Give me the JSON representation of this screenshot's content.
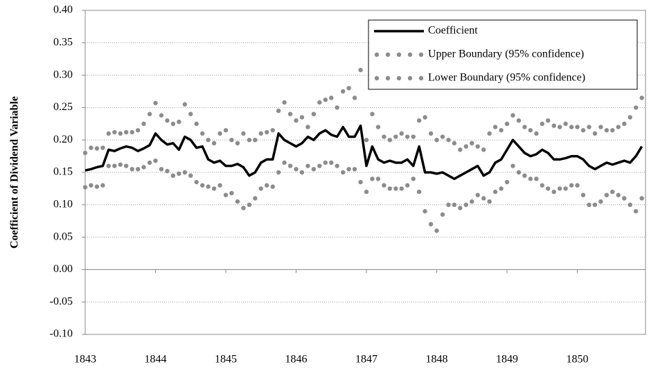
{
  "chart_data": {
    "type": "line",
    "y_label": "Coefficient of Dividend Variable",
    "xlim": [
      1843,
      1850.97
    ],
    "xticks": [
      1843,
      1844,
      1845,
      1846,
      1847,
      1848,
      1849,
      1850
    ],
    "ylim": [
      -0.1,
      0.4
    ],
    "yticks": [
      {
        "value": -0.1,
        "label": "-0.10"
      },
      {
        "value": -0.05,
        "label": "-0.05"
      },
      {
        "value": 0,
        "label": "0.00"
      },
      {
        "value": 0.05,
        "label": "0.05"
      },
      {
        "value": 0.1,
        "label": "0.10"
      },
      {
        "value": 0.15,
        "label": "0.15"
      },
      {
        "value": 0.2,
        "label": "0.20"
      },
      {
        "value": 0.25,
        "label": "0.25"
      },
      {
        "value": 0.3,
        "label": "0.30"
      },
      {
        "value": 0.35,
        "label": "0.35"
      },
      {
        "value": 0.4,
        "label": "0.40"
      }
    ],
    "grid": true,
    "legend": "top-right",
    "x": [
      1843.0,
      1843.083,
      1843.167,
      1843.25,
      1843.333,
      1843.417,
      1843.5,
      1843.583,
      1843.667,
      1843.75,
      1843.833,
      1843.917,
      1844.0,
      1844.083,
      1844.167,
      1844.25,
      1844.333,
      1844.417,
      1844.5,
      1844.583,
      1844.667,
      1844.75,
      1844.833,
      1844.917,
      1845.0,
      1845.083,
      1845.167,
      1845.25,
      1845.333,
      1845.417,
      1845.5,
      1845.583,
      1845.667,
      1845.75,
      1845.833,
      1845.917,
      1846.0,
      1846.083,
      1846.167,
      1846.25,
      1846.333,
      1846.417,
      1846.5,
      1846.583,
      1846.667,
      1846.75,
      1846.833,
      1846.917,
      1847.0,
      1847.083,
      1847.167,
      1847.25,
      1847.333,
      1847.417,
      1847.5,
      1847.583,
      1847.667,
      1847.75,
      1847.833,
      1847.917,
      1848.0,
      1848.083,
      1848.167,
      1848.25,
      1848.333,
      1848.417,
      1848.5,
      1848.583,
      1848.667,
      1848.75,
      1848.833,
      1848.917,
      1849.0,
      1849.083,
      1849.167,
      1849.25,
      1849.333,
      1849.417,
      1849.5,
      1849.583,
      1849.667,
      1849.75,
      1849.833,
      1849.917,
      1850.0,
      1850.083,
      1850.167,
      1850.25,
      1850.333,
      1850.417,
      1850.5,
      1850.583,
      1850.667,
      1850.75,
      1850.833,
      1850.917
    ],
    "series": [
      {
        "name": "Coefficient",
        "color": "#000000",
        "style": "line",
        "values": [
          0.153,
          0.155,
          0.158,
          0.16,
          0.185,
          0.183,
          0.187,
          0.19,
          0.188,
          0.183,
          0.187,
          0.192,
          0.21,
          0.2,
          0.193,
          0.195,
          0.185,
          0.205,
          0.2,
          0.188,
          0.19,
          0.17,
          0.165,
          0.168,
          0.16,
          0.16,
          0.163,
          0.158,
          0.145,
          0.15,
          0.165,
          0.17,
          0.17,
          0.21,
          0.2,
          0.195,
          0.19,
          0.195,
          0.205,
          0.2,
          0.21,
          0.215,
          0.208,
          0.205,
          0.22,
          0.205,
          0.205,
          0.222,
          0.16,
          0.19,
          0.17,
          0.165,
          0.168,
          0.165,
          0.165,
          0.17,
          0.16,
          0.19,
          0.15,
          0.15,
          0.148,
          0.15,
          0.145,
          0.14,
          0.145,
          0.15,
          0.155,
          0.16,
          0.145,
          0.15,
          0.165,
          0.17,
          0.185,
          0.2,
          0.19,
          0.18,
          0.175,
          0.178,
          0.185,
          0.18,
          0.17,
          0.17,
          0.172,
          0.175,
          0.175,
          0.17,
          0.16,
          0.155,
          0.16,
          0.165,
          0.162,
          0.165,
          0.168,
          0.165,
          0.175,
          0.19
        ]
      },
      {
        "name": "Upper Boundary (95% confidence)",
        "color": "#8c8c8c",
        "style": "markers",
        "values": [
          0.18,
          0.188,
          0.187,
          0.188,
          0.21,
          0.212,
          0.21,
          0.212,
          0.212,
          0.215,
          0.225,
          0.24,
          0.257,
          0.238,
          0.23,
          0.225,
          0.228,
          0.255,
          0.24,
          0.225,
          0.21,
          0.2,
          0.195,
          0.21,
          0.215,
          0.2,
          0.195,
          0.21,
          0.2,
          0.2,
          0.21,
          0.212,
          0.215,
          0.245,
          0.258,
          0.24,
          0.23,
          0.235,
          0.22,
          0.24,
          0.258,
          0.262,
          0.265,
          0.25,
          0.275,
          0.28,
          0.265,
          0.308,
          0.2,
          0.24,
          0.22,
          0.205,
          0.2,
          0.205,
          0.21,
          0.205,
          0.205,
          0.23,
          0.235,
          0.21,
          0.2,
          0.205,
          0.2,
          0.195,
          0.185,
          0.19,
          0.195,
          0.19,
          0.185,
          0.21,
          0.22,
          0.215,
          0.225,
          0.238,
          0.23,
          0.22,
          0.215,
          0.21,
          0.225,
          0.23,
          0.222,
          0.22,
          0.225,
          0.22,
          0.22,
          0.215,
          0.22,
          0.21,
          0.22,
          0.215,
          0.215,
          0.22,
          0.225,
          0.235,
          0.25,
          0.265
        ]
      },
      {
        "name": "Lower Boundary (95% confidence)",
        "color": "#8c8c8c",
        "style": "markers",
        "values": [
          0.127,
          0.13,
          0.128,
          0.13,
          0.16,
          0.16,
          0.162,
          0.16,
          0.155,
          0.155,
          0.158,
          0.165,
          0.168,
          0.155,
          0.152,
          0.145,
          0.148,
          0.15,
          0.145,
          0.135,
          0.13,
          0.128,
          0.125,
          0.13,
          0.115,
          0.118,
          0.105,
          0.095,
          0.1,
          0.11,
          0.125,
          0.13,
          0.128,
          0.15,
          0.165,
          0.16,
          0.155,
          0.15,
          0.16,
          0.155,
          0.16,
          0.165,
          0.165,
          0.16,
          0.15,
          0.155,
          0.155,
          0.135,
          0.12,
          0.14,
          0.14,
          0.13,
          0.125,
          0.125,
          0.125,
          0.13,
          0.14,
          0.12,
          0.09,
          0.07,
          0.06,
          0.085,
          0.1,
          0.1,
          0.095,
          0.1,
          0.105,
          0.115,
          0.11,
          0.105,
          0.12,
          0.125,
          0.135,
          0.16,
          0.15,
          0.145,
          0.14,
          0.14,
          0.13,
          0.125,
          0.12,
          0.125,
          0.125,
          0.13,
          0.13,
          0.115,
          0.1,
          0.1,
          0.105,
          0.115,
          0.12,
          0.115,
          0.11,
          0.1,
          0.09,
          0.11
        ]
      }
    ]
  }
}
